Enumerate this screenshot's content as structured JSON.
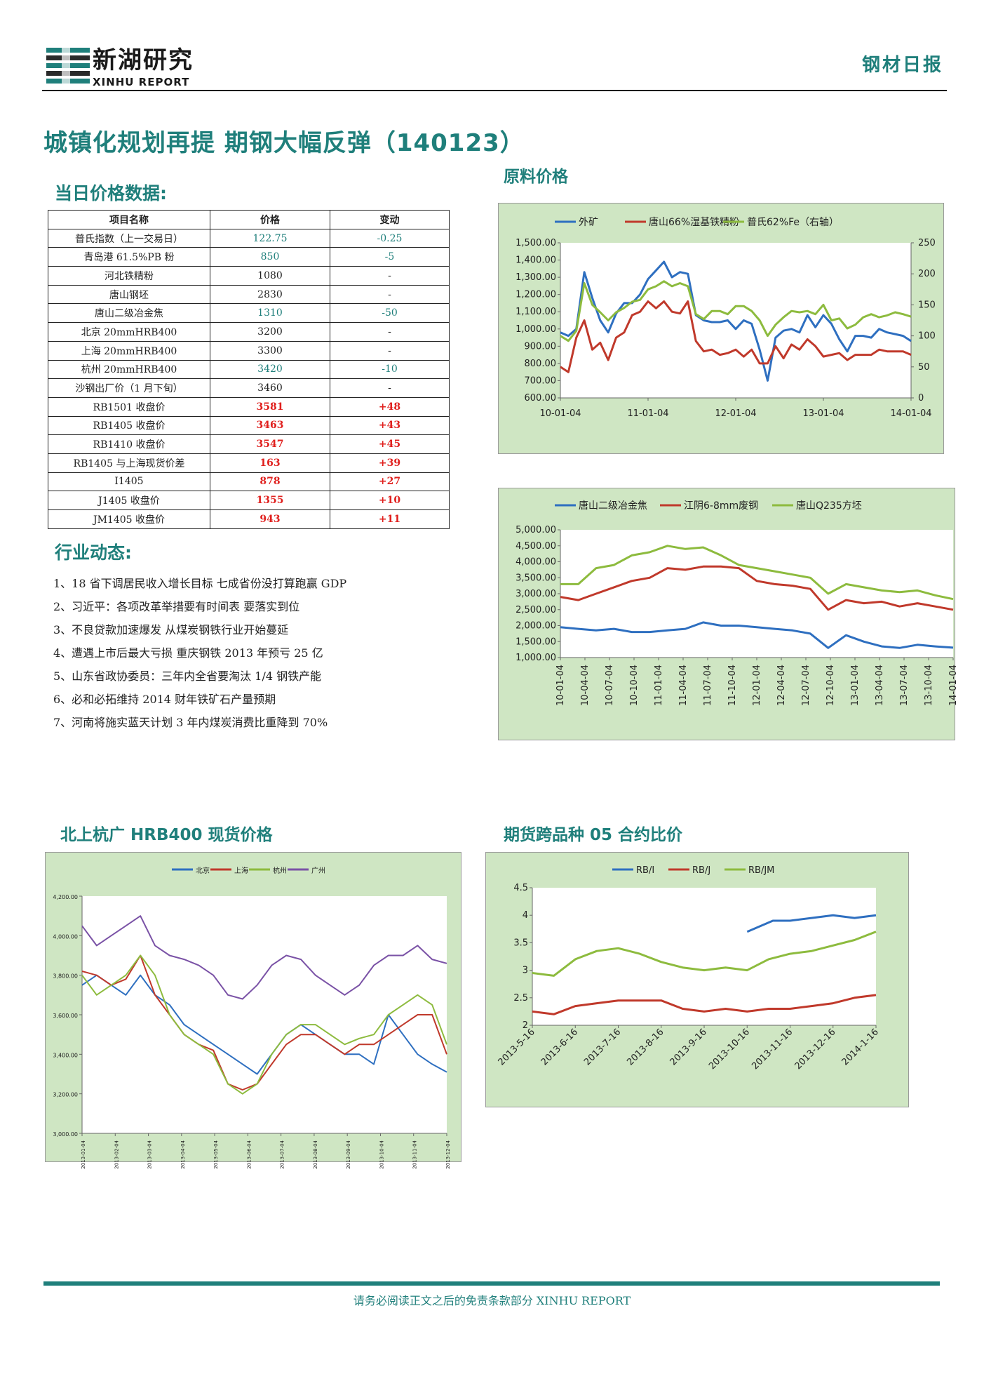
{
  "header": {
    "logo_cn": "新湖研究",
    "logo_en": "XINHU REPORT",
    "report_type": "钢材日报"
  },
  "title": "城镇化规划再提 期钢大幅反弹（140123）",
  "sections": {
    "daily_prices": "当日价格数据:",
    "industry_news": "行业动态:",
    "raw_material": "原料价格",
    "hrb400": "北上杭广 HRB400 现货价格",
    "ratio": "期货跨品种 05 合约比价"
  },
  "table": {
    "headers": [
      "项目名称",
      "价格",
      "变动"
    ],
    "rows": [
      {
        "name": "普氏指数（上一交易日）",
        "price": "122.75",
        "change": "-0.25",
        "style": "teal"
      },
      {
        "name": "青岛港 61.5%PB 粉",
        "price": "850",
        "change": "-5",
        "style": "teal"
      },
      {
        "name": "河北铁精粉",
        "price": "1080",
        "change": "-",
        "style": "plain"
      },
      {
        "name": "唐山钢坯",
        "price": "2830",
        "change": "-",
        "style": "plain"
      },
      {
        "name": "唐山二级冶金焦",
        "price": "1310",
        "change": "-50",
        "style": "teal"
      },
      {
        "name": "北京 20mmHRB400",
        "price": "3200",
        "change": "-",
        "style": "plain"
      },
      {
        "name": "上海 20mmHRB400",
        "price": "3300",
        "change": "-",
        "style": "plain"
      },
      {
        "name": "杭州 20mmHRB400",
        "price": "3420",
        "change": "-10",
        "style": "teal"
      },
      {
        "name": "沙钢出厂价（1 月下旬）",
        "price": "3460",
        "change": "-",
        "style": "plain"
      },
      {
        "name": "RB1501 收盘价",
        "price": "3581",
        "change": "+48",
        "style": "red"
      },
      {
        "name": "RB1405 收盘价",
        "price": "3463",
        "change": "+43",
        "style": "red"
      },
      {
        "name": "RB1410 收盘价",
        "price": "3547",
        "change": "+45",
        "style": "red"
      },
      {
        "name": "RB1405 与上海现货价差",
        "price": "163",
        "change": "+39",
        "style": "red"
      },
      {
        "name": "I1405",
        "price": "878",
        "change": "+27",
        "style": "red"
      },
      {
        "name": "J1405 收盘价",
        "price": "1355",
        "change": "+10",
        "style": "red"
      },
      {
        "name": "JM1405 收盘价",
        "price": "943",
        "change": "+11",
        "style": "red"
      }
    ]
  },
  "news": [
    "1、18 省下调居民收入增长目标 七成省份没打算跑赢 GDP",
    "2、习近平：各项改革举措要有时间表 要落实到位",
    "3、不良贷款加速爆发 从煤炭钢铁行业开始蔓延",
    "4、遭遇上市后最大亏损 重庆钢铁 2013 年预亏 25 亿",
    "5、山东省政协委员：三年内全省要淘汰 1/4 钢铁产能",
    "6、必和必拓维持 2014 财年铁矿石产量预期",
    "7、河南将施实蓝天计划 3 年内煤炭消费比重降到 70%"
  ],
  "colors": {
    "blue": "#2e6fc0",
    "red": "#c0392b",
    "green": "#8dbb3e",
    "purple": "#7a52a6",
    "teal": "#1f7f7b"
  },
  "chart_data": [
    {
      "id": "raw-material",
      "type": "line",
      "legend_position": "top",
      "x_ticks": [
        "10-01-04",
        "11-01-04",
        "12-01-04",
        "13-01-04",
        "14-01-04"
      ],
      "y_ticks": [
        "1,500.00",
        "1,400.00",
        "1,300.00",
        "1,200.00",
        "1,100.00",
        "1,000.00",
        "900.00",
        "800.00",
        "700.00",
        "600.00"
      ],
      "ylim": [
        600,
        1500
      ],
      "y2_ticks": [
        "250",
        "200",
        "150",
        "100",
        "50",
        "0"
      ],
      "y2lim": [
        0,
        250
      ],
      "series": [
        {
          "name": "外矿",
          "color": "blue",
          "axis": "left",
          "values": [
            980,
            960,
            1000,
            1330,
            1180,
            1050,
            980,
            1090,
            1150,
            1150,
            1200,
            1290,
            1340,
            1390,
            1300,
            1330,
            1320,
            1080,
            1050,
            1040,
            1040,
            1050,
            1000,
            1050,
            1030,
            880,
            700,
            950,
            990,
            1000,
            980,
            1080,
            1010,
            1080,
            1030,
            940,
            870,
            960,
            960,
            950,
            1000,
            980,
            970,
            960,
            930
          ]
        },
        {
          "name": "唐山66%湿基铁精粉",
          "color": "red",
          "axis": "left",
          "values": [
            780,
            750,
            950,
            1050,
            880,
            920,
            820,
            950,
            980,
            1080,
            1100,
            1160,
            1120,
            1160,
            1100,
            1090,
            1160,
            930,
            870,
            880,
            850,
            860,
            880,
            840,
            880,
            800,
            800,
            900,
            830,
            910,
            880,
            940,
            900,
            840,
            850,
            860,
            820,
            850,
            850,
            850,
            880,
            870,
            870,
            870,
            850
          ]
        },
        {
          "name": "普氏62%Fe（右轴）",
          "color": "green",
          "axis": "right",
          "values": [
            100,
            92,
            108,
            185,
            150,
            138,
            125,
            138,
            145,
            155,
            158,
            175,
            180,
            188,
            180,
            185,
            180,
            135,
            127,
            140,
            140,
            135,
            148,
            148,
            140,
            125,
            100,
            118,
            130,
            140,
            138,
            140,
            135,
            150,
            125,
            128,
            112,
            118,
            130,
            135,
            130,
            133,
            138,
            135,
            131
          ]
        }
      ]
    },
    {
      "id": "coke-scrap-billet",
      "type": "line",
      "legend_position": "top",
      "x_ticks": [
        "10-01-04",
        "10-04-04",
        "10-07-04",
        "10-10-04",
        "11-01-04",
        "11-04-04",
        "11-07-04",
        "11-10-04",
        "12-01-04",
        "12-04-04",
        "12-07-04",
        "12-10-04",
        "13-01-04",
        "13-04-04",
        "13-07-04",
        "13-10-04",
        "14-01-04"
      ],
      "y_ticks": [
        "5,000.00",
        "4,500.00",
        "4,000.00",
        "3,500.00",
        "3,000.00",
        "2,500.00",
        "2,000.00",
        "1,500.00",
        "1,000.00"
      ],
      "ylim": [
        1000,
        5000
      ],
      "series": [
        {
          "name": "唐山二级冶金焦",
          "color": "blue",
          "values": [
            1950,
            1900,
            1850,
            1900,
            1800,
            1800,
            1850,
            1900,
            2100,
            2000,
            2000,
            1950,
            1900,
            1850,
            1750,
            1300,
            1700,
            1500,
            1350,
            1300,
            1400,
            1350,
            1310
          ]
        },
        {
          "name": "江阴6-8mm废钢",
          "color": "red",
          "values": [
            2900,
            2800,
            3000,
            3200,
            3400,
            3500,
            3800,
            3750,
            3850,
            3850,
            3800,
            3400,
            3300,
            3250,
            3150,
            2500,
            2800,
            2700,
            2750,
            2600,
            2700,
            2600,
            2500
          ]
        },
        {
          "name": "唐山Q235方坯",
          "color": "green",
          "values": [
            3300,
            3300,
            3800,
            3900,
            4200,
            4300,
            4500,
            4400,
            4450,
            4200,
            3900,
            3800,
            3700,
            3600,
            3500,
            3000,
            3300,
            3200,
            3100,
            3050,
            3100,
            2950,
            2830
          ]
        }
      ]
    },
    {
      "id": "hrb400",
      "type": "line",
      "legend_position": "top",
      "x_ticks": [
        "2013-01-04",
        "2013-02-04",
        "2013-03-04",
        "2013-04-04",
        "2013-05-04",
        "2013-06-04",
        "2013-07-04",
        "2013-08-04",
        "2013-09-04",
        "2013-10-04",
        "2013-11-04",
        "2013-12-04"
      ],
      "y_ticks": [
        "4,200.00",
        "4,000.00",
        "3,800.00",
        "3,600.00",
        "3,400.00",
        "3,200.00",
        "3,000.00"
      ],
      "ylim": [
        3000,
        4200
      ],
      "series": [
        {
          "name": "北京",
          "color": "blue",
          "values": [
            3750,
            3800,
            3750,
            3700,
            3800,
            3700,
            3650,
            3550,
            3500,
            3450,
            3400,
            3350,
            3300,
            3400,
            3500,
            3550,
            3500,
            3450,
            3400,
            3400,
            3350,
            3600,
            3500,
            3400,
            3350,
            3310
          ]
        },
        {
          "name": "上海",
          "color": "red",
          "values": [
            3820,
            3800,
            3750,
            3780,
            3900,
            3700,
            3600,
            3500,
            3450,
            3420,
            3250,
            3220,
            3250,
            3350,
            3450,
            3500,
            3500,
            3450,
            3400,
            3450,
            3450,
            3500,
            3550,
            3600,
            3600,
            3400
          ]
        },
        {
          "name": "杭州",
          "color": "green",
          "values": [
            3800,
            3700,
            3750,
            3800,
            3900,
            3800,
            3600,
            3500,
            3450,
            3400,
            3250,
            3200,
            3250,
            3400,
            3500,
            3550,
            3550,
            3500,
            3450,
            3480,
            3500,
            3600,
            3650,
            3700,
            3650,
            3450
          ]
        },
        {
          "name": "广州",
          "color": "purple",
          "values": [
            4050,
            3950,
            4000,
            4050,
            4100,
            3950,
            3900,
            3880,
            3850,
            3800,
            3700,
            3680,
            3750,
            3850,
            3900,
            3880,
            3800,
            3750,
            3700,
            3750,
            3850,
            3900,
            3900,
            3950,
            3880,
            3860
          ]
        }
      ]
    },
    {
      "id": "ratio",
      "type": "line",
      "legend_position": "top",
      "x_ticks": [
        "2013-5-16",
        "2013-6-16",
        "2013-7-16",
        "2013-8-16",
        "2013-9-16",
        "2013-10-16",
        "2013-11-16",
        "2013-12-16",
        "2014-1-16"
      ],
      "y_ticks": [
        "4.5",
        "4",
        "3.5",
        "3",
        "2.5",
        "2"
      ],
      "ylim": [
        2,
        4.5
      ],
      "series": [
        {
          "name": "RB/I",
          "color": "blue",
          "x": [
            5.0,
            5.3,
            5.6,
            6.0,
            6.5,
            7.0,
            7.5,
            8.0
          ],
          "values": [
            3.7,
            3.8,
            3.9,
            3.9,
            3.95,
            4.0,
            3.95,
            4.0
          ]
        },
        {
          "name": "RB/J",
          "color": "red",
          "x": [
            0,
            0.5,
            1.0,
            1.5,
            2.0,
            2.5,
            3.0,
            3.5,
            4.0,
            4.5,
            5.0,
            5.5,
            6.0,
            6.5,
            7.0,
            7.5,
            8.0
          ],
          "values": [
            2.25,
            2.2,
            2.35,
            2.4,
            2.45,
            2.45,
            2.45,
            2.3,
            2.25,
            2.3,
            2.25,
            2.3,
            2.3,
            2.35,
            2.4,
            2.5,
            2.55
          ]
        },
        {
          "name": "RB/JM",
          "color": "green",
          "x": [
            0,
            0.5,
            1.0,
            1.5,
            2.0,
            2.5,
            3.0,
            3.5,
            4.0,
            4.5,
            5.0,
            5.5,
            6.0,
            6.5,
            7.0,
            7.5,
            8.0
          ],
          "values": [
            2.95,
            2.9,
            3.2,
            3.35,
            3.4,
            3.3,
            3.15,
            3.05,
            3.0,
            3.05,
            3.0,
            3.2,
            3.3,
            3.35,
            3.45,
            3.55,
            3.7
          ]
        }
      ]
    }
  ],
  "footer": "请务必阅读正文之后的免责条款部分 XINHU REPORT"
}
